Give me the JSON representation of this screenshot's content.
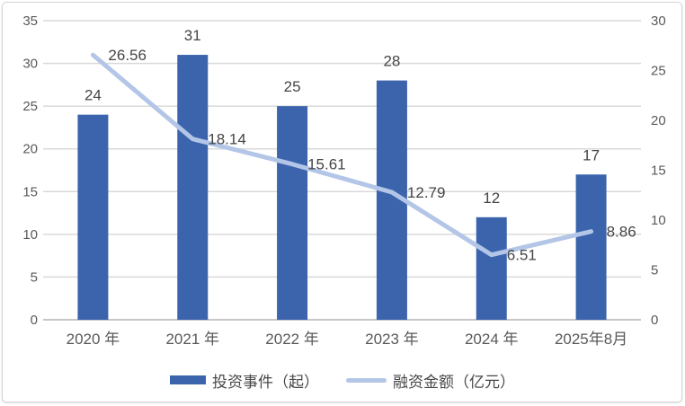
{
  "chart_data": {
    "type": "bar+line combo",
    "categories": [
      "2020 年",
      "2021 年",
      "2022 年",
      "2023 年",
      "2024 年",
      "2025年8月"
    ],
    "series": [
      {
        "name": "投资事件（起）",
        "type": "bar",
        "axis": "left",
        "values": [
          24,
          31,
          25,
          28,
          12,
          17
        ],
        "labels": [
          "24",
          "31",
          "25",
          "28",
          "12",
          "17"
        ]
      },
      {
        "name": "融资金额（亿元）",
        "type": "line",
        "axis": "right",
        "values": [
          26.56,
          18.14,
          15.61,
          12.79,
          6.51,
          8.86
        ],
        "labels": [
          "26.56",
          "18.14",
          "15.61",
          "12.79",
          "6.51",
          "8.86"
        ]
      }
    ],
    "left_axis": {
      "min": 0,
      "max": 35,
      "step": 5,
      "ticks": [
        "35",
        "30",
        "25",
        "20",
        "15",
        "10",
        "5",
        "0"
      ]
    },
    "right_axis": {
      "min": 0,
      "max": 30,
      "step": 5,
      "ticks": [
        "30",
        "25",
        "20",
        "15",
        "10",
        "5",
        "0"
      ]
    },
    "grid": true,
    "legend_position": "bottom",
    "title": ""
  },
  "colors": {
    "bar": "#3B64AD",
    "line": "#B3C6E7",
    "gridline": "#D9D9D9",
    "axis_line": "#BFBFBF",
    "tick_text": "#595959",
    "data_label": "#454545"
  }
}
